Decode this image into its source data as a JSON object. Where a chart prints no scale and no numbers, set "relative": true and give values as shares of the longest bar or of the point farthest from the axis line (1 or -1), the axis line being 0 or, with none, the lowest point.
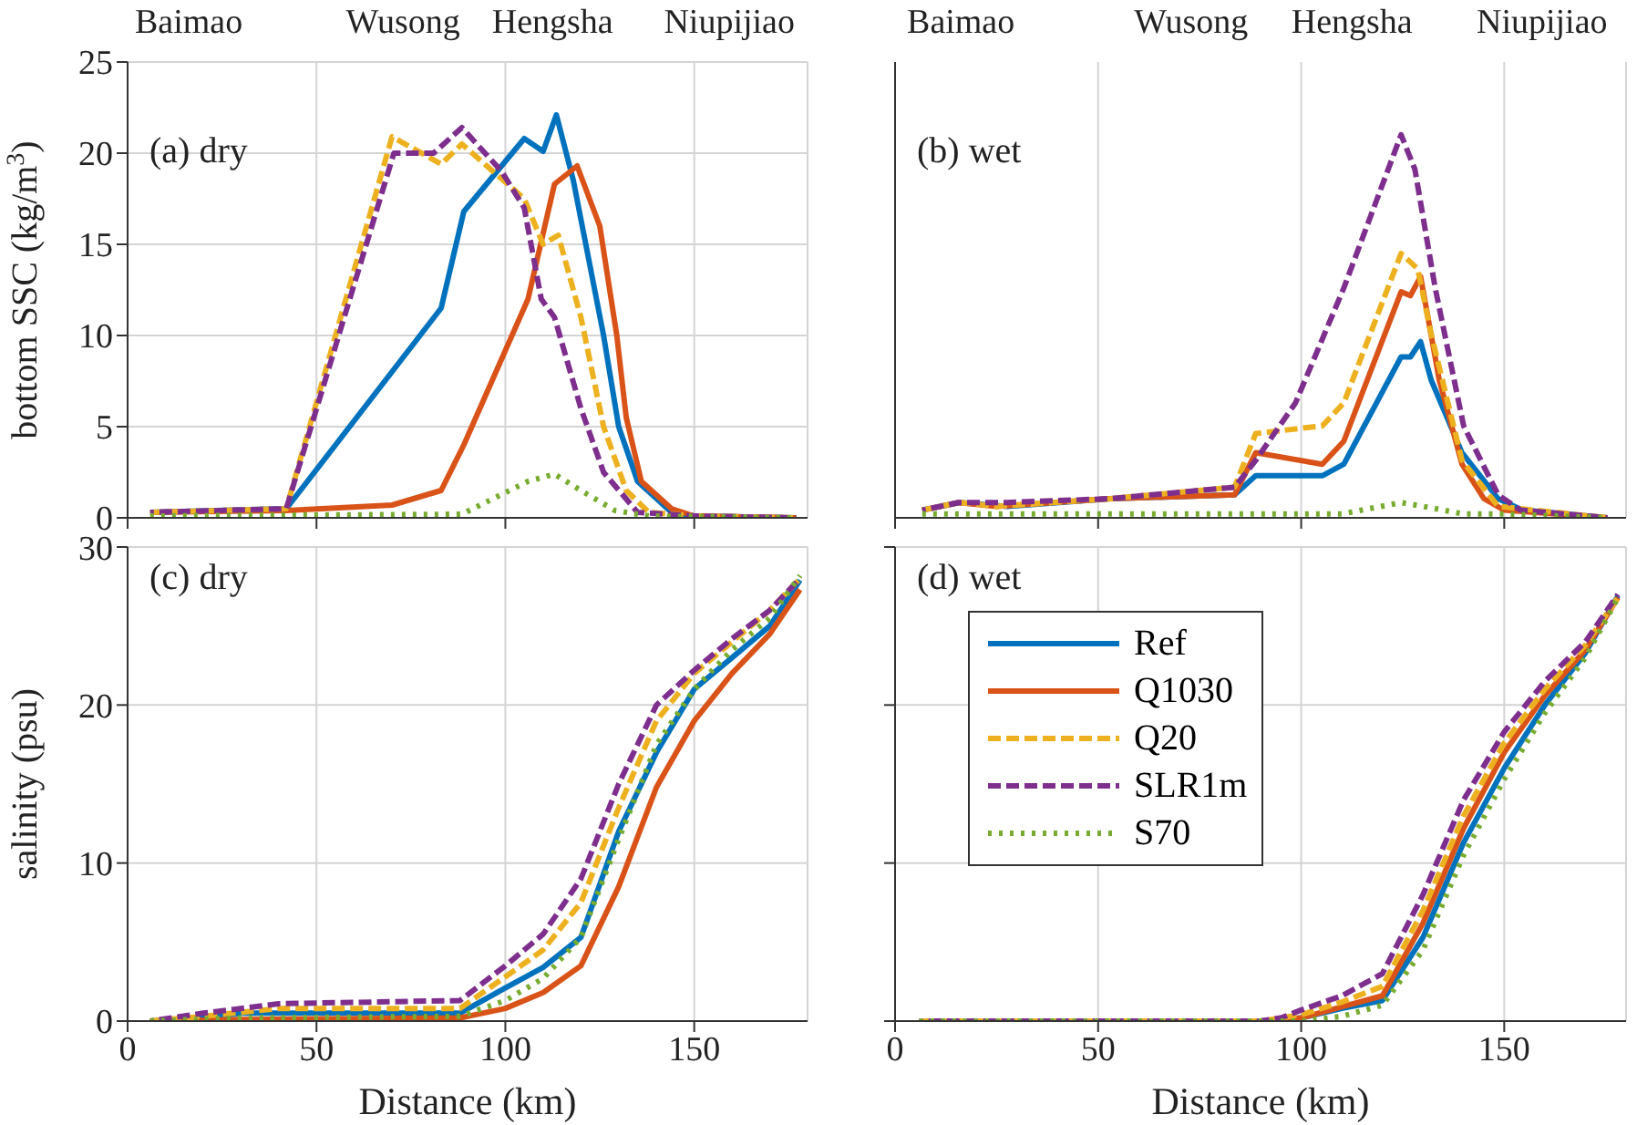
{
  "chart_data": [
    {
      "type": "line",
      "ylabel": "bottom SSC (kg/m$^{3}$)",
      "annotations": [
        "(a) dry",
        "Baimao",
        "Wusong",
        "Hengsha",
        "Niupijiao"
      ],
      "xlim": [
        0,
        180
      ],
      "xticks": [
        0,
        50,
        100,
        150
      ],
      "ylim": [
        0,
        25
      ],
      "yticks": [
        0,
        5,
        10,
        15,
        20,
        25
      ],
      "tick_labels": "y",
      "grid": true,
      "marker": "none",
      "series": [
        {
          "color": "#0072bd",
          "line_style": "solid",
          "x": [
            6,
            42,
            83,
            89,
            105,
            110,
            113.5,
            118,
            126,
            130,
            135,
            144,
            150,
            177
          ],
          "values": [
            0.3,
            0.5,
            11.5,
            16.8,
            20.8,
            20.1,
            22.1,
            18.5,
            10,
            5,
            2,
            0.3,
            0.1,
            0
          ]
        },
        {
          "color": "#d95319",
          "line_style": "solid",
          "x": [
            6,
            42,
            70,
            83,
            89,
            106,
            113,
            119,
            125,
            129.5,
            132,
            136,
            144,
            150,
            177
          ],
          "values": [
            0.3,
            0.4,
            0.7,
            1.5,
            4,
            12,
            18.3,
            19.3,
            16,
            10,
            5.5,
            2,
            0.5,
            0.1,
            0
          ]
        },
        {
          "color": "#edb120",
          "line_style": "dashed",
          "x": [
            6,
            42,
            70,
            83,
            88.5,
            105,
            110,
            114,
            120,
            126,
            132,
            138,
            150,
            177
          ],
          "values": [
            0.3,
            0.5,
            20.9,
            19.4,
            20.5,
            17.5,
            15,
            15.5,
            11,
            5,
            1.5,
            0.3,
            0.1,
            0
          ]
        },
        {
          "color": "#7e2f8e",
          "line_style": "dashed",
          "x": [
            6,
            42,
            70.5,
            81,
            88.5,
            99,
            105,
            109.5,
            113,
            120,
            126,
            135,
            150,
            177
          ],
          "values": [
            0.3,
            0.5,
            20,
            20,
            21.4,
            19,
            17,
            12,
            11,
            6,
            2.5,
            0.3,
            0.1,
            0
          ]
        },
        {
          "color": "#77ac30",
          "line_style": "dotted",
          "x": [
            6,
            88.5,
            106,
            113,
            120,
            129,
            138,
            177
          ],
          "values": [
            0.1,
            0.2,
            2,
            2.4,
            1.5,
            0.4,
            0.1,
            0
          ]
        }
      ]
    },
    {
      "type": "line",
      "annotations": [
        "(b) wet",
        "Baimao",
        "Wusong",
        "Hengsha",
        "Niupijiao"
      ],
      "relative": true,
      "xlim": [
        0,
        180
      ],
      "xticks": [
        0,
        50,
        100,
        150
      ],
      "tick_labels": false,
      "grid": "x",
      "marker": "none",
      "series": [
        {
          "color": "#0072bd",
          "line_style": "solid",
          "x": [
            6.7,
            15.7,
            27.6,
            53,
            83.6,
            88.8,
            105.2,
            110.5,
            124.6,
            126.9,
            129.4,
            132,
            139.6,
            148.5,
            154.5,
            175.4
          ],
          "values": [
            0.02,
            0.04,
            0.03,
            0.05,
            0.06,
            0.11,
            0.11,
            0.14,
            0.42,
            0.42,
            0.46,
            0.36,
            0.17,
            0.05,
            0.02,
            0
          ]
        },
        {
          "color": "#d95319",
          "line_style": "solid",
          "x": [
            6.7,
            15.7,
            25,
            53,
            83.6,
            88.8,
            105.2,
            110.5,
            124.6,
            126.9,
            129.4,
            134,
            139.6,
            145,
            150,
            175.4
          ],
          "values": [
            0.02,
            0.04,
            0.03,
            0.05,
            0.06,
            0.17,
            0.14,
            0.2,
            0.59,
            0.58,
            0.63,
            0.36,
            0.14,
            0.05,
            0.02,
            0
          ]
        },
        {
          "color": "#edb120",
          "line_style": "dashed",
          "x": [
            6.7,
            15.7,
            25,
            53,
            83.6,
            88.8,
            105.2,
            110.5,
            124.6,
            128.7,
            132,
            139.6,
            148.5,
            175.4
          ],
          "values": [
            0.02,
            0.04,
            0.03,
            0.05,
            0.08,
            0.22,
            0.24,
            0.3,
            0.69,
            0.65,
            0.48,
            0.15,
            0.03,
            0
          ]
        },
        {
          "color": "#7e2f8e",
          "line_style": "dashed",
          "x": [
            6.7,
            15.7,
            27.6,
            53,
            83.6,
            88.8,
            98.6,
            110.5,
            124.6,
            128,
            133,
            140,
            148.5,
            154,
            175.4
          ],
          "values": [
            0.02,
            0.04,
            0.04,
            0.05,
            0.08,
            0.15,
            0.3,
            0.6,
            1,
            0.91,
            0.6,
            0.24,
            0.06,
            0.02,
            0
          ]
        },
        {
          "color": "#77ac30",
          "line_style": "dotted",
          "x": [
            6.7,
            110,
            124.6,
            130,
            140,
            150,
            175.4
          ],
          "values": [
            0.01,
            0.01,
            0.04,
            0.03,
            0.01,
            0.01,
            0
          ]
        }
      ]
    },
    {
      "type": "line",
      "xlabel": "Distance (km)",
      "ylabel": "salinity (psu)",
      "annotations": [
        "(c) dry"
      ],
      "xlim": [
        0,
        180
      ],
      "xticks": [
        0,
        50,
        100,
        150
      ],
      "ylim": [
        0,
        30
      ],
      "yticks": [
        0,
        10,
        20,
        30
      ],
      "grid": true,
      "marker": "none",
      "series": [
        {
          "color": "#0072bd",
          "line_style": "solid",
          "x": [
            6,
            20,
            30,
            50,
            88,
            100,
            110,
            120,
            130,
            140,
            150,
            160,
            170,
            178
          ],
          "values": [
            0,
            0.2,
            0.5,
            0.5,
            0.5,
            2.1,
            3.4,
            5.3,
            12,
            17,
            21,
            23,
            25,
            27.9
          ]
        },
        {
          "color": "#d95319",
          "line_style": "solid",
          "x": [
            6,
            30,
            88,
            100,
            110,
            120,
            130,
            140,
            150,
            160,
            170,
            178
          ],
          "values": [
            0,
            0.1,
            0.2,
            0.8,
            1.8,
            3.5,
            8.5,
            14.8,
            19,
            22,
            24.5,
            27.3
          ]
        },
        {
          "color": "#edb120",
          "line_style": "dashed",
          "x": [
            6,
            20,
            40,
            88,
            100,
            110,
            120,
            130,
            140,
            150,
            160,
            170,
            178
          ],
          "values": [
            0,
            0.3,
            0.8,
            0.8,
            2.8,
            4.5,
            7.5,
            13.5,
            19,
            22,
            24,
            26,
            28
          ]
        },
        {
          "color": "#7e2f8e",
          "line_style": "dashed",
          "x": [
            6,
            20,
            40,
            88,
            100,
            110,
            120,
            130,
            140,
            150,
            160,
            170,
            178
          ],
          "values": [
            0,
            0.5,
            1.1,
            1.3,
            3.5,
            5.5,
            9,
            15,
            20,
            22.2,
            24.2,
            26,
            28
          ]
        },
        {
          "color": "#77ac30",
          "line_style": "dotted",
          "x": [
            6,
            30,
            88,
            100,
            110,
            120,
            130,
            140,
            150,
            160,
            170,
            178
          ],
          "values": [
            0,
            0.2,
            0.3,
            1.3,
            2.7,
            5.3,
            11.5,
            17.5,
            21,
            23.5,
            25.5,
            28.2
          ]
        }
      ]
    },
    {
      "type": "line",
      "xlabel": "Distance (km)",
      "annotations": [
        "(d) wet"
      ],
      "xlim": [
        0,
        180
      ],
      "xticks": [
        0,
        50,
        100,
        150
      ],
      "ylim": [
        0,
        30
      ],
      "yticks": [
        0,
        10,
        20,
        30
      ],
      "tick_labels": "x",
      "grid": true,
      "marker": "none",
      "legend": "center left",
      "series": [
        {
          "name": "Ref",
          "color": "#0072bd",
          "line_style": "solid",
          "x": [
            6,
            90,
            100,
            110,
            120,
            130,
            140,
            150,
            160,
            170,
            178
          ],
          "values": [
            0,
            0,
            0.2,
            0.8,
            1.3,
            5.3,
            11.3,
            16,
            20,
            23.3,
            26.9
          ]
        },
        {
          "name": "Q1030",
          "color": "#d95319",
          "line_style": "solid",
          "x": [
            6,
            90,
            100,
            110,
            120,
            130,
            140,
            150,
            160,
            170,
            178
          ],
          "values": [
            0,
            0,
            0.2,
            0.9,
            1.6,
            6.2,
            12.2,
            17,
            20.6,
            23.5,
            26.8
          ]
        },
        {
          "name": "Q20",
          "color": "#edb120",
          "line_style": "dashed",
          "x": [
            6,
            90,
            100,
            110,
            120,
            130,
            140,
            150,
            160,
            170,
            178
          ],
          "values": [
            0,
            0,
            0.4,
            1.2,
            2.2,
            7,
            13,
            17.6,
            21,
            23.8,
            26.8
          ]
        },
        {
          "name": "SLR1m",
          "color": "#7e2f8e",
          "line_style": "dashed",
          "x": [
            6,
            90,
            95,
            100,
            110,
            120,
            130,
            140,
            150,
            160,
            170,
            178
          ],
          "values": [
            0,
            0,
            0.2,
            0.7,
            1.6,
            3,
            8,
            14,
            18.3,
            21.5,
            24,
            27
          ]
        },
        {
          "name": "S70",
          "color": "#77ac30",
          "line_style": "dotted",
          "x": [
            6,
            100,
            110,
            120,
            130,
            140,
            150,
            160,
            170,
            178
          ],
          "values": [
            0,
            0,
            0.3,
            1,
            4.5,
            10.5,
            15.3,
            19.5,
            23,
            26.8
          ]
        }
      ]
    }
  ]
}
